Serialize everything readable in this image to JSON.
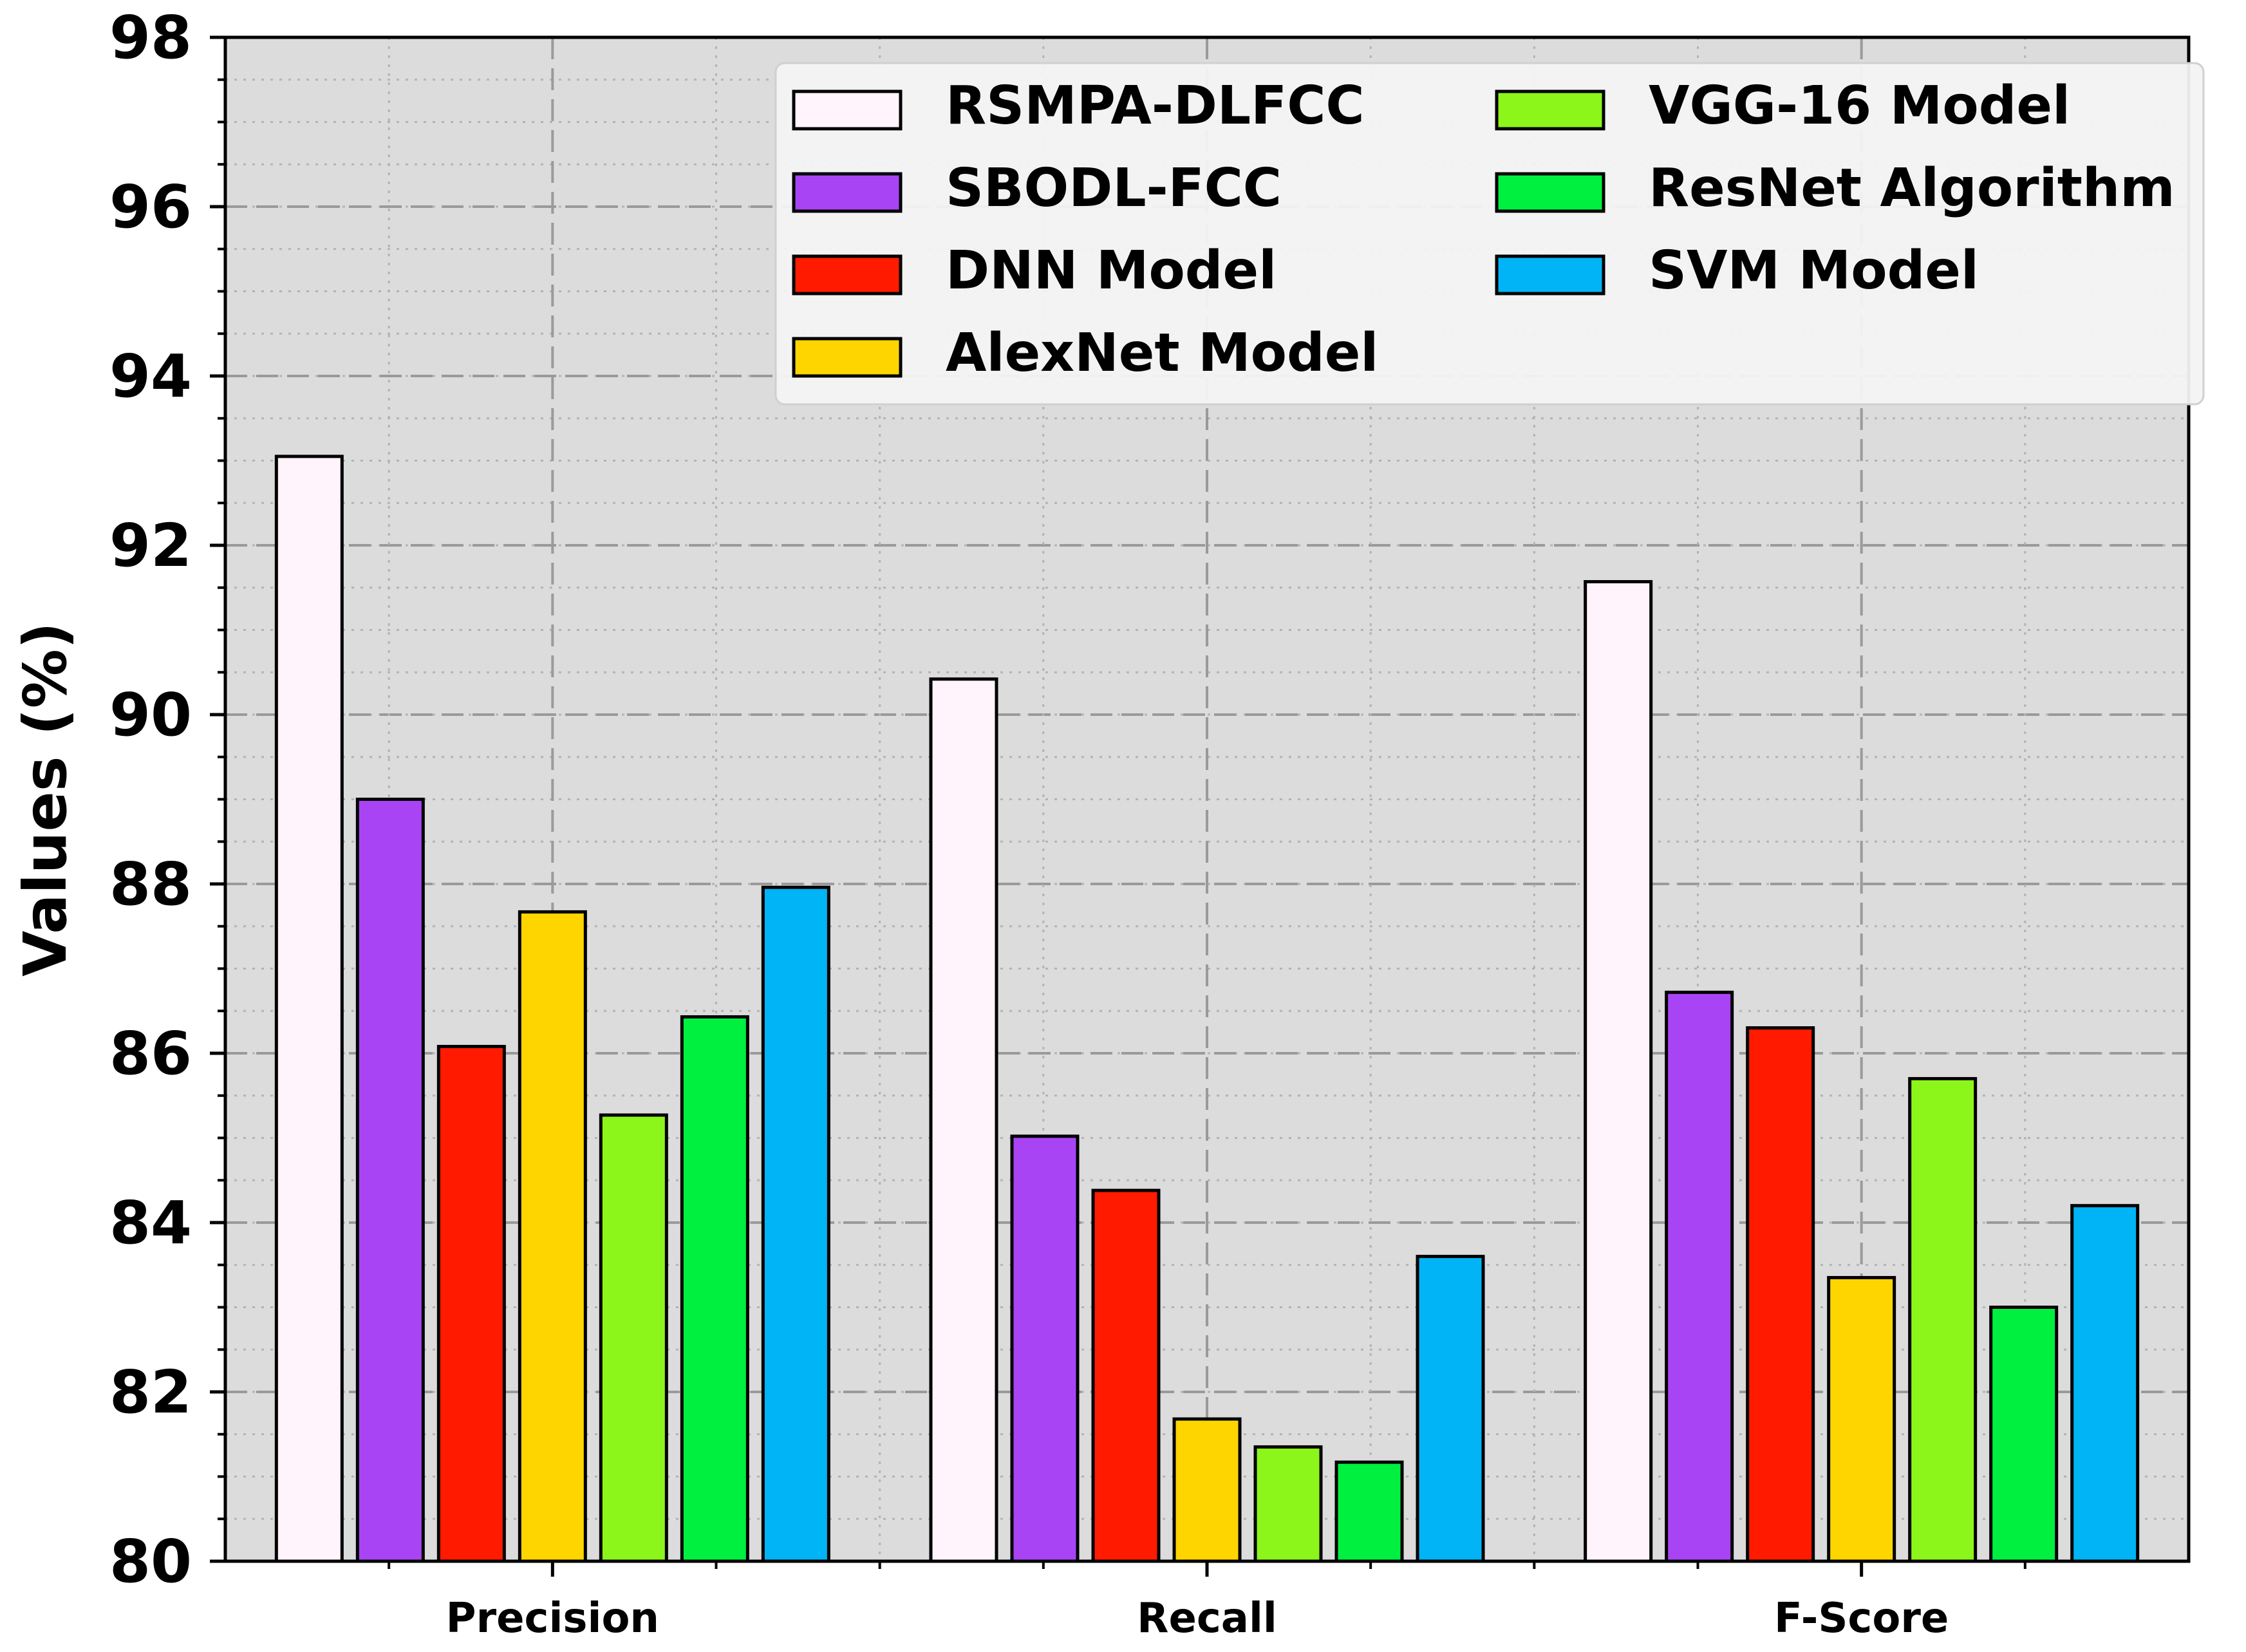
{
  "chart_data": {
    "type": "bar",
    "title": "",
    "xlabel": "",
    "ylabel": "Values (%)",
    "categories": [
      "Precision",
      "Recall",
      "F-Score"
    ],
    "ylim": [
      80,
      98
    ],
    "yticks": [
      80,
      82,
      84,
      86,
      88,
      90,
      92,
      94,
      96,
      98
    ],
    "grid": true,
    "legend_position": "top-right",
    "series": [
      {
        "name": "RSMPA-DLFCC",
        "color": "#fff4fb",
        "values": [
          93.05,
          90.42,
          91.57
        ]
      },
      {
        "name": "SBODL-FCC",
        "color": "#a944f5",
        "values": [
          89.0,
          85.02,
          86.72
        ]
      },
      {
        "name": "DNN Model",
        "color": "#ff1a00",
        "values": [
          86.08,
          84.38,
          86.3
        ]
      },
      {
        "name": "AlexNet Model",
        "color": "#ffd500",
        "values": [
          87.67,
          81.68,
          83.35
        ]
      },
      {
        "name": "VGG-16 Model",
        "color": "#8cf51a",
        "values": [
          85.27,
          81.35,
          85.7
        ]
      },
      {
        "name": "ResNet Algorithm",
        "color": "#00f040",
        "values": [
          86.43,
          81.17,
          83.0
        ]
      },
      {
        "name": "SVM Model",
        "color": "#00b4f5",
        "values": [
          87.96,
          83.6,
          84.2
        ]
      }
    ]
  }
}
